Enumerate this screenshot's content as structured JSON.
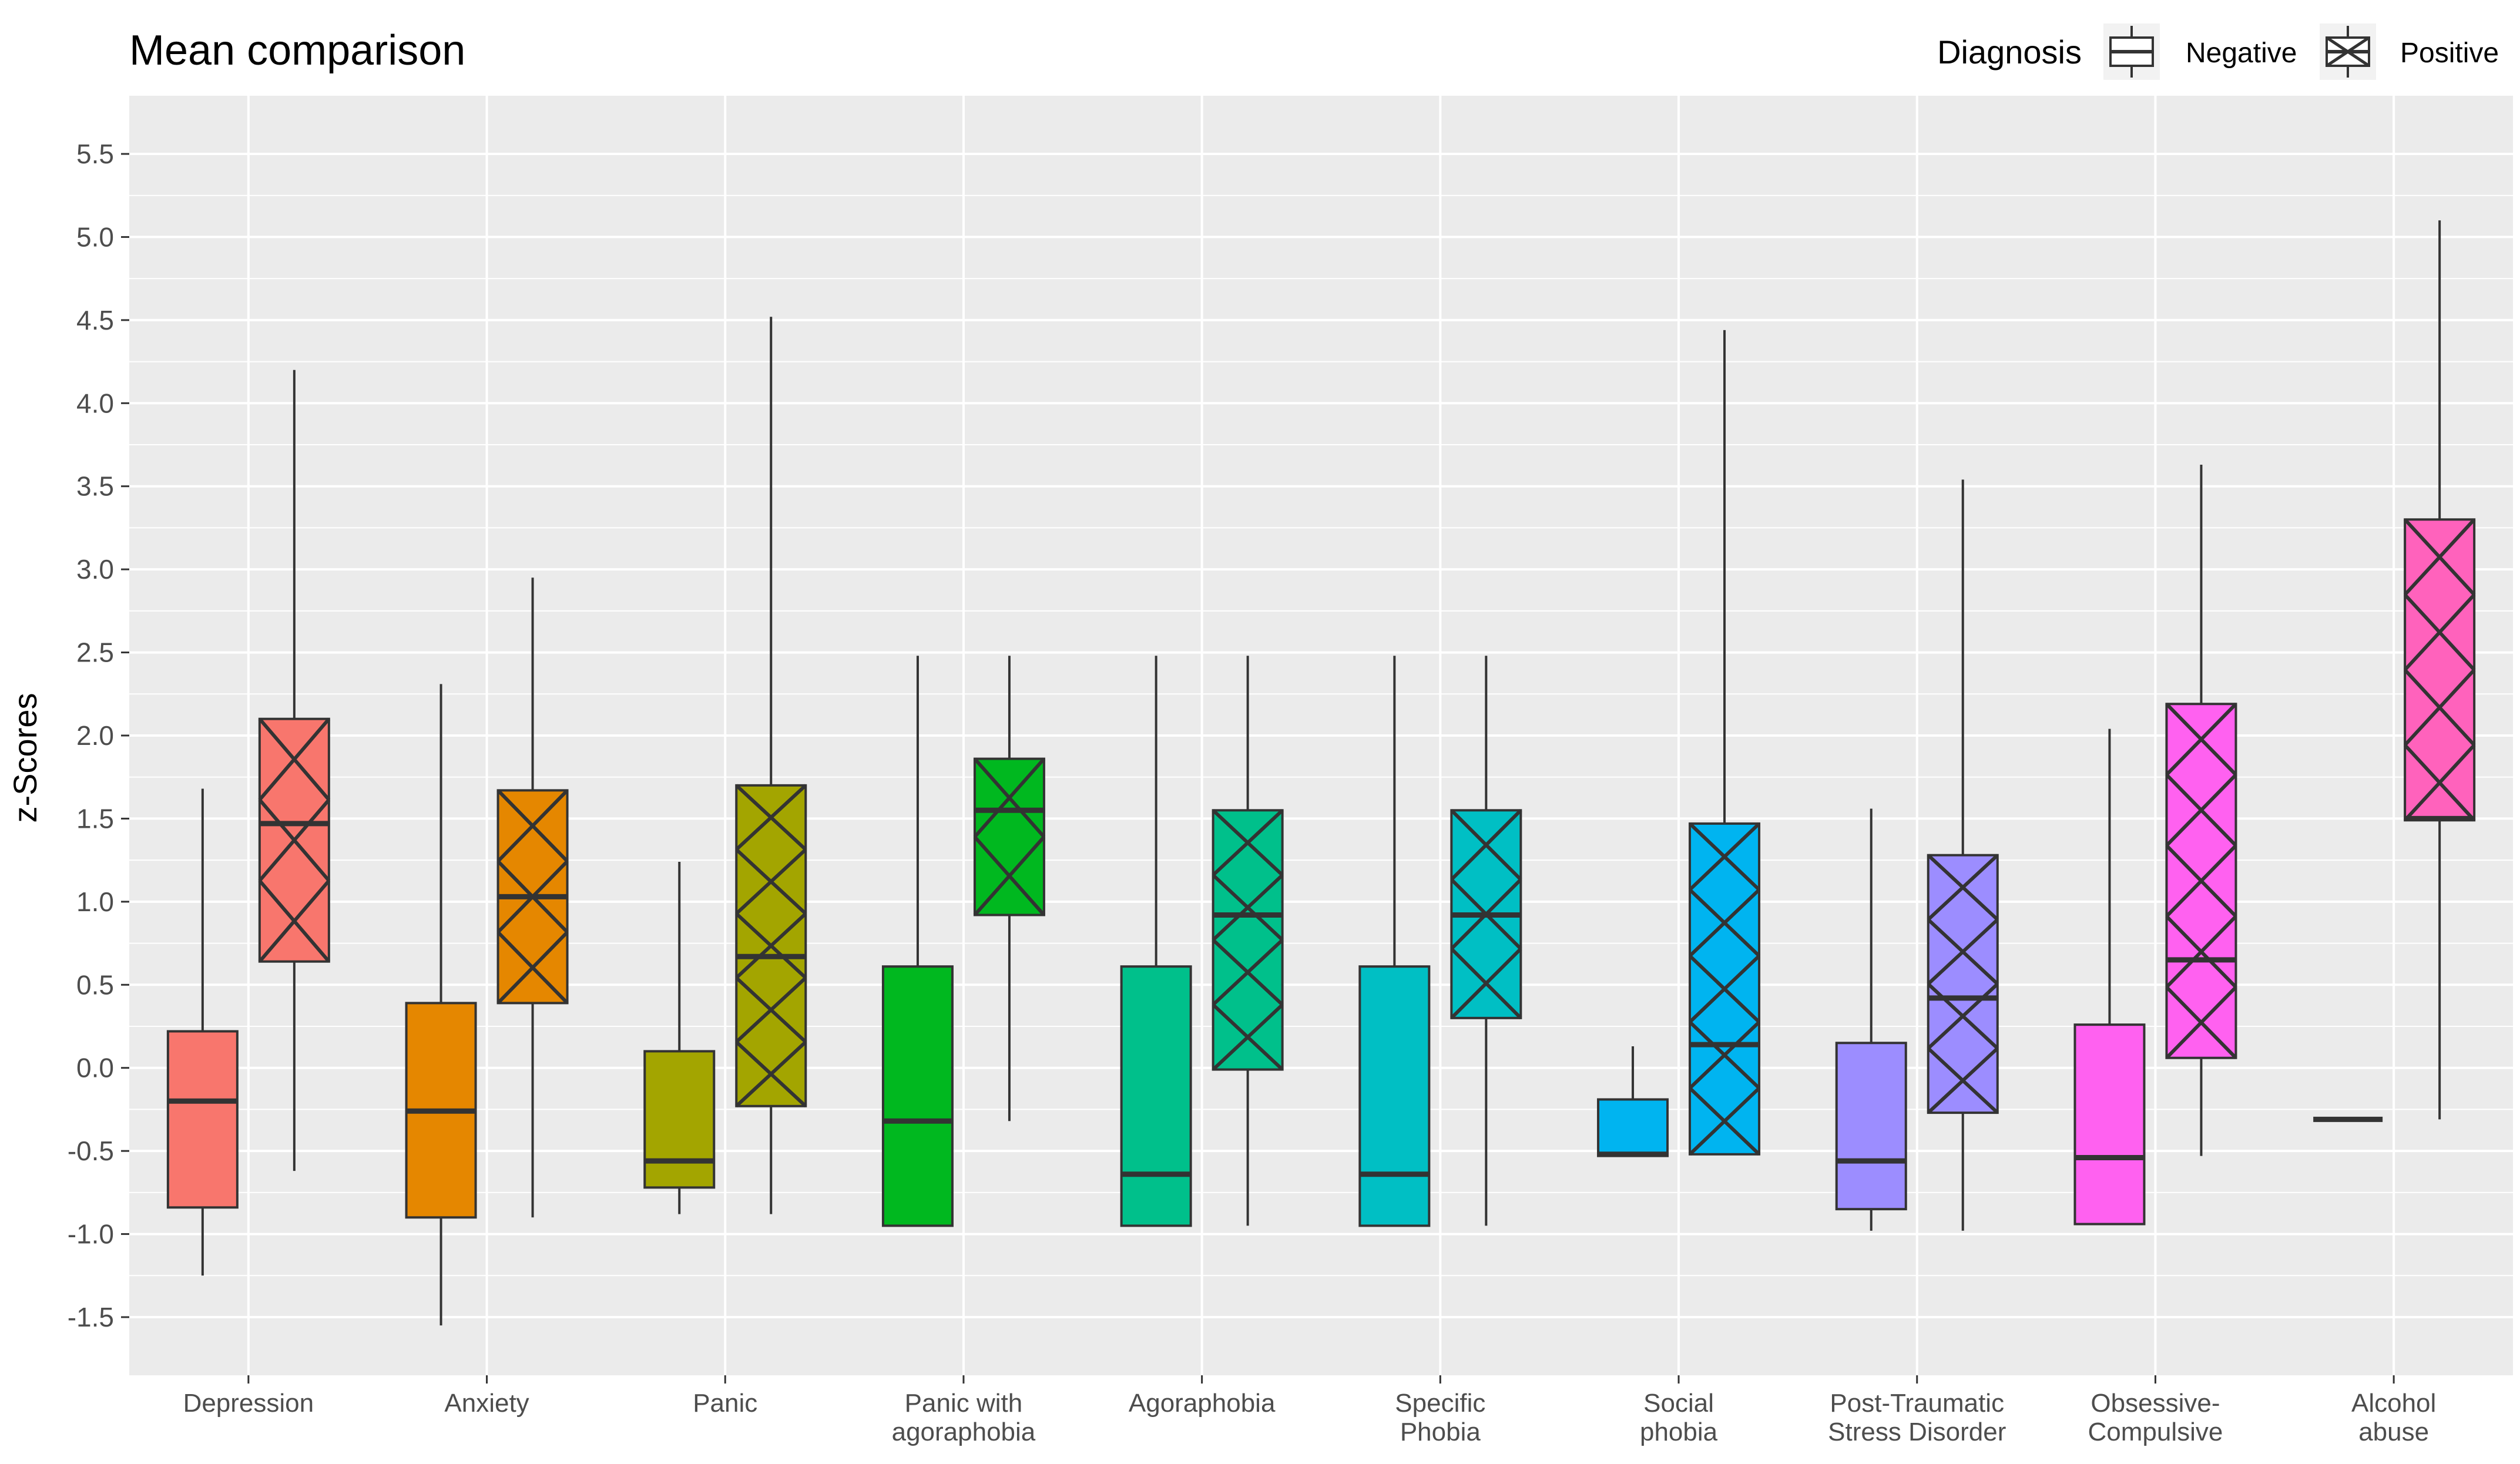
{
  "chart_data": {
    "type": "boxplot",
    "title": "Mean comparison",
    "xlabel": "",
    "ylabel": "z-Scores",
    "ylim": [
      -1.85,
      5.85
    ],
    "yticks": [
      -1.5,
      -1.0,
      -0.5,
      0.0,
      0.5,
      1.0,
      1.5,
      2.0,
      2.5,
      3.0,
      3.5,
      4.0,
      4.5,
      5.0,
      5.5
    ],
    "ytick_labels": [
      "-1.5",
      "-1.0",
      "-0.5",
      "0.0",
      "0.5",
      "1.0",
      "1.5",
      "2.0",
      "2.5",
      "3.0",
      "3.5",
      "4.0",
      "4.5",
      "5.0",
      "5.5"
    ],
    "grid": true,
    "legend": {
      "title": "Diagnosis",
      "position": "top-right",
      "entries": [
        {
          "label": "Negative",
          "pattern": "none"
        },
        {
          "label": "Positive",
          "pattern": "crosshatch"
        }
      ]
    },
    "categories": [
      {
        "label": [
          "Depression"
        ],
        "color": "#F8766D",
        "negative": {
          "min": -1.25,
          "q1": -0.84,
          "median": -0.2,
          "q3": 0.22,
          "max": 1.68
        },
        "positive": {
          "min": -0.62,
          "q1": 0.64,
          "median": 1.47,
          "q3": 2.1,
          "max": 4.2
        }
      },
      {
        "label": [
          "Anxiety"
        ],
        "color": "#E58700",
        "negative": {
          "min": -1.55,
          "q1": -0.9,
          "median": -0.26,
          "q3": 0.39,
          "max": 2.31
        },
        "positive": {
          "min": -0.9,
          "q1": 0.39,
          "median": 1.03,
          "q3": 1.67,
          "max": 2.95
        }
      },
      {
        "label": [
          "Panic"
        ],
        "color": "#A3A500",
        "negative": {
          "min": -0.88,
          "q1": -0.72,
          "median": -0.56,
          "q3": 0.1,
          "max": 1.24
        },
        "positive": {
          "min": -0.88,
          "q1": -0.23,
          "median": 0.67,
          "q3": 1.7,
          "max": 4.52
        }
      },
      {
        "label": [
          "Panic with",
          "agoraphobia"
        ],
        "color": "#00B81F",
        "negative": {
          "min": -0.95,
          "q1": -0.95,
          "median": -0.32,
          "q3": 0.61,
          "max": 2.48
        },
        "positive": {
          "min": -0.32,
          "q1": 0.92,
          "median": 1.55,
          "q3": 1.86,
          "max": 2.48
        }
      },
      {
        "label": [
          "Agoraphobia"
        ],
        "color": "#00C08B",
        "negative": {
          "min": -0.95,
          "q1": -0.95,
          "median": -0.64,
          "q3": 0.61,
          "max": 2.48
        },
        "positive": {
          "min": -0.95,
          "q1": -0.01,
          "median": 0.92,
          "q3": 1.55,
          "max": 2.48
        }
      },
      {
        "label": [
          "Specific",
          "Phobia"
        ],
        "color": "#00BFC4",
        "negative": {
          "min": -0.95,
          "q1": -0.95,
          "median": -0.64,
          "q3": 0.61,
          "max": 2.48
        },
        "positive": {
          "min": -0.95,
          "q1": 0.3,
          "median": 0.92,
          "q3": 1.55,
          "max": 2.48
        }
      },
      {
        "label": [
          "Social",
          "phobia"
        ],
        "color": "#00B4F0",
        "negative": {
          "min": -0.53,
          "q1": -0.53,
          "median": -0.52,
          "q3": -0.19,
          "max": 0.13
        },
        "positive": {
          "min": -0.52,
          "q1": -0.52,
          "median": 0.14,
          "q3": 1.47,
          "max": 4.44
        }
      },
      {
        "label": [
          "Post-Traumatic",
          "Stress Disorder"
        ],
        "color": "#9C8DFF",
        "negative": {
          "min": -0.98,
          "q1": -0.85,
          "median": -0.56,
          "q3": 0.15,
          "max": 1.56
        },
        "positive": {
          "min": -0.98,
          "q1": -0.27,
          "median": 0.42,
          "q3": 1.28,
          "max": 3.54
        }
      },
      {
        "label": [
          "Obsessive-",
          "Compulsive"
        ],
        "color": "#FF61F0",
        "negative": {
          "min": -0.94,
          "q1": -0.94,
          "median": -0.54,
          "q3": 0.26,
          "max": 2.04
        },
        "positive": {
          "min": -0.53,
          "q1": 0.06,
          "median": 0.65,
          "q3": 2.19,
          "max": 3.63
        }
      },
      {
        "label": [
          "Alcohol",
          "abuse"
        ],
        "color": "#FF62BC",
        "negative": {
          "min": -0.31,
          "q1": -0.31,
          "median": -0.31,
          "q3": -0.31,
          "max": -0.31
        },
        "positive": {
          "min": -0.31,
          "q1": 1.49,
          "median": 1.5,
          "q3": 3.3,
          "max": 5.1
        }
      }
    ]
  }
}
